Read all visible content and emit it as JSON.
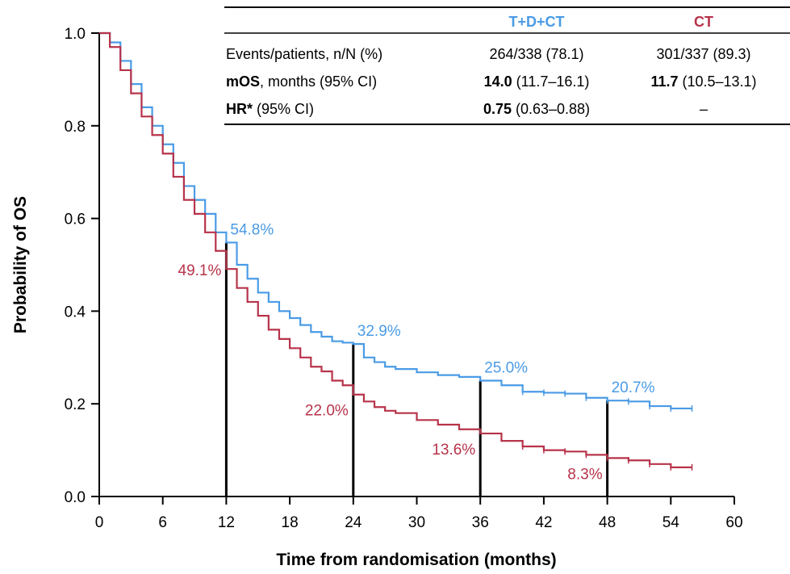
{
  "chart_data": {
    "type": "line",
    "title": "",
    "xlabel": "Time from randomisation (months)",
    "ylabel": "Probability of OS",
    "xlim": [
      0,
      60
    ],
    "ylim": [
      0,
      1.0
    ],
    "xticks": [
      "0",
      "6",
      "12",
      "18",
      "24",
      "30",
      "36",
      "42",
      "48",
      "54",
      "60"
    ],
    "yticks": [
      "0.0",
      "0.2",
      "0.4",
      "0.6",
      "0.8",
      "1.0"
    ],
    "grid": false,
    "colors": {
      "tdct": "#4a9be6",
      "ct": "#b7334a"
    },
    "series": [
      {
        "name": "T+D+CT",
        "color": "#4a9be6",
        "x": [
          0,
          1,
          2,
          3,
          4,
          5,
          6,
          7,
          8,
          9,
          10,
          11,
          12,
          13,
          14,
          15,
          16,
          17,
          18,
          19,
          20,
          21,
          22,
          23,
          24,
          25,
          26,
          27,
          28,
          30,
          32,
          34,
          36,
          38,
          40,
          42,
          44,
          46,
          48,
          50,
          52,
          54,
          56
        ],
        "y": [
          1.0,
          0.98,
          0.94,
          0.89,
          0.84,
          0.8,
          0.76,
          0.72,
          0.67,
          0.64,
          0.61,
          0.57,
          0.548,
          0.5,
          0.47,
          0.44,
          0.42,
          0.4,
          0.385,
          0.37,
          0.355,
          0.345,
          0.335,
          0.332,
          0.329,
          0.3,
          0.29,
          0.28,
          0.275,
          0.268,
          0.262,
          0.258,
          0.25,
          0.24,
          0.226,
          0.224,
          0.222,
          0.213,
          0.207,
          0.205,
          0.195,
          0.19,
          0.19
        ]
      },
      {
        "name": "CT",
        "color": "#b7334a",
        "x": [
          0,
          1,
          2,
          3,
          4,
          5,
          6,
          7,
          8,
          9,
          10,
          11,
          12,
          13,
          14,
          15,
          16,
          17,
          18,
          19,
          20,
          21,
          22,
          23,
          24,
          25,
          26,
          27,
          28,
          30,
          32,
          34,
          36,
          38,
          40,
          42,
          44,
          46,
          48,
          50,
          52,
          54,
          56
        ],
        "y": [
          1.0,
          0.97,
          0.92,
          0.87,
          0.82,
          0.78,
          0.74,
          0.69,
          0.64,
          0.61,
          0.57,
          0.53,
          0.491,
          0.45,
          0.42,
          0.39,
          0.36,
          0.34,
          0.32,
          0.3,
          0.28,
          0.27,
          0.25,
          0.24,
          0.22,
          0.205,
          0.193,
          0.185,
          0.18,
          0.165,
          0.155,
          0.145,
          0.136,
          0.12,
          0.108,
          0.1,
          0.097,
          0.09,
          0.083,
          0.078,
          0.07,
          0.063,
          0.063
        ]
      }
    ],
    "landmarks": [
      {
        "x": 12,
        "tdct_label": "54.8%",
        "tdct_value": 0.548,
        "ct_label": "49.1%",
        "ct_value": 0.491
      },
      {
        "x": 24,
        "tdct_label": "32.9%",
        "tdct_value": 0.329,
        "ct_label": "22.0%",
        "ct_value": 0.22
      },
      {
        "x": 36,
        "tdct_label": "25.0%",
        "tdct_value": 0.25,
        "ct_label": "13.6%",
        "ct_value": 0.136
      },
      {
        "x": 48,
        "tdct_label": "20.7%",
        "tdct_value": 0.207,
        "ct_label": "8.3%",
        "ct_value": 0.083
      }
    ]
  },
  "table": {
    "headers": [
      "",
      "T+D+CT",
      "CT"
    ],
    "rows": [
      {
        "label_bold": "",
        "label_rest": "Events/patients, n/N (%)",
        "tdct_bold": "",
        "tdct_rest": "264/338 (78.1)",
        "ct_bold": "",
        "ct_rest": "301/337 (89.3)"
      },
      {
        "label_bold": "mOS",
        "label_rest": ", months (95% CI)",
        "tdct_bold": "14.0",
        "tdct_rest": " (11.7–16.1)",
        "ct_bold": "11.7",
        "ct_rest": " (10.5–13.1)"
      },
      {
        "label_bold": "HR*",
        "label_rest": " (95% CI)",
        "tdct_bold": "0.75",
        "tdct_rest": " (0.63–0.88)",
        "ct_bold": "",
        "ct_rest": "–"
      }
    ]
  }
}
